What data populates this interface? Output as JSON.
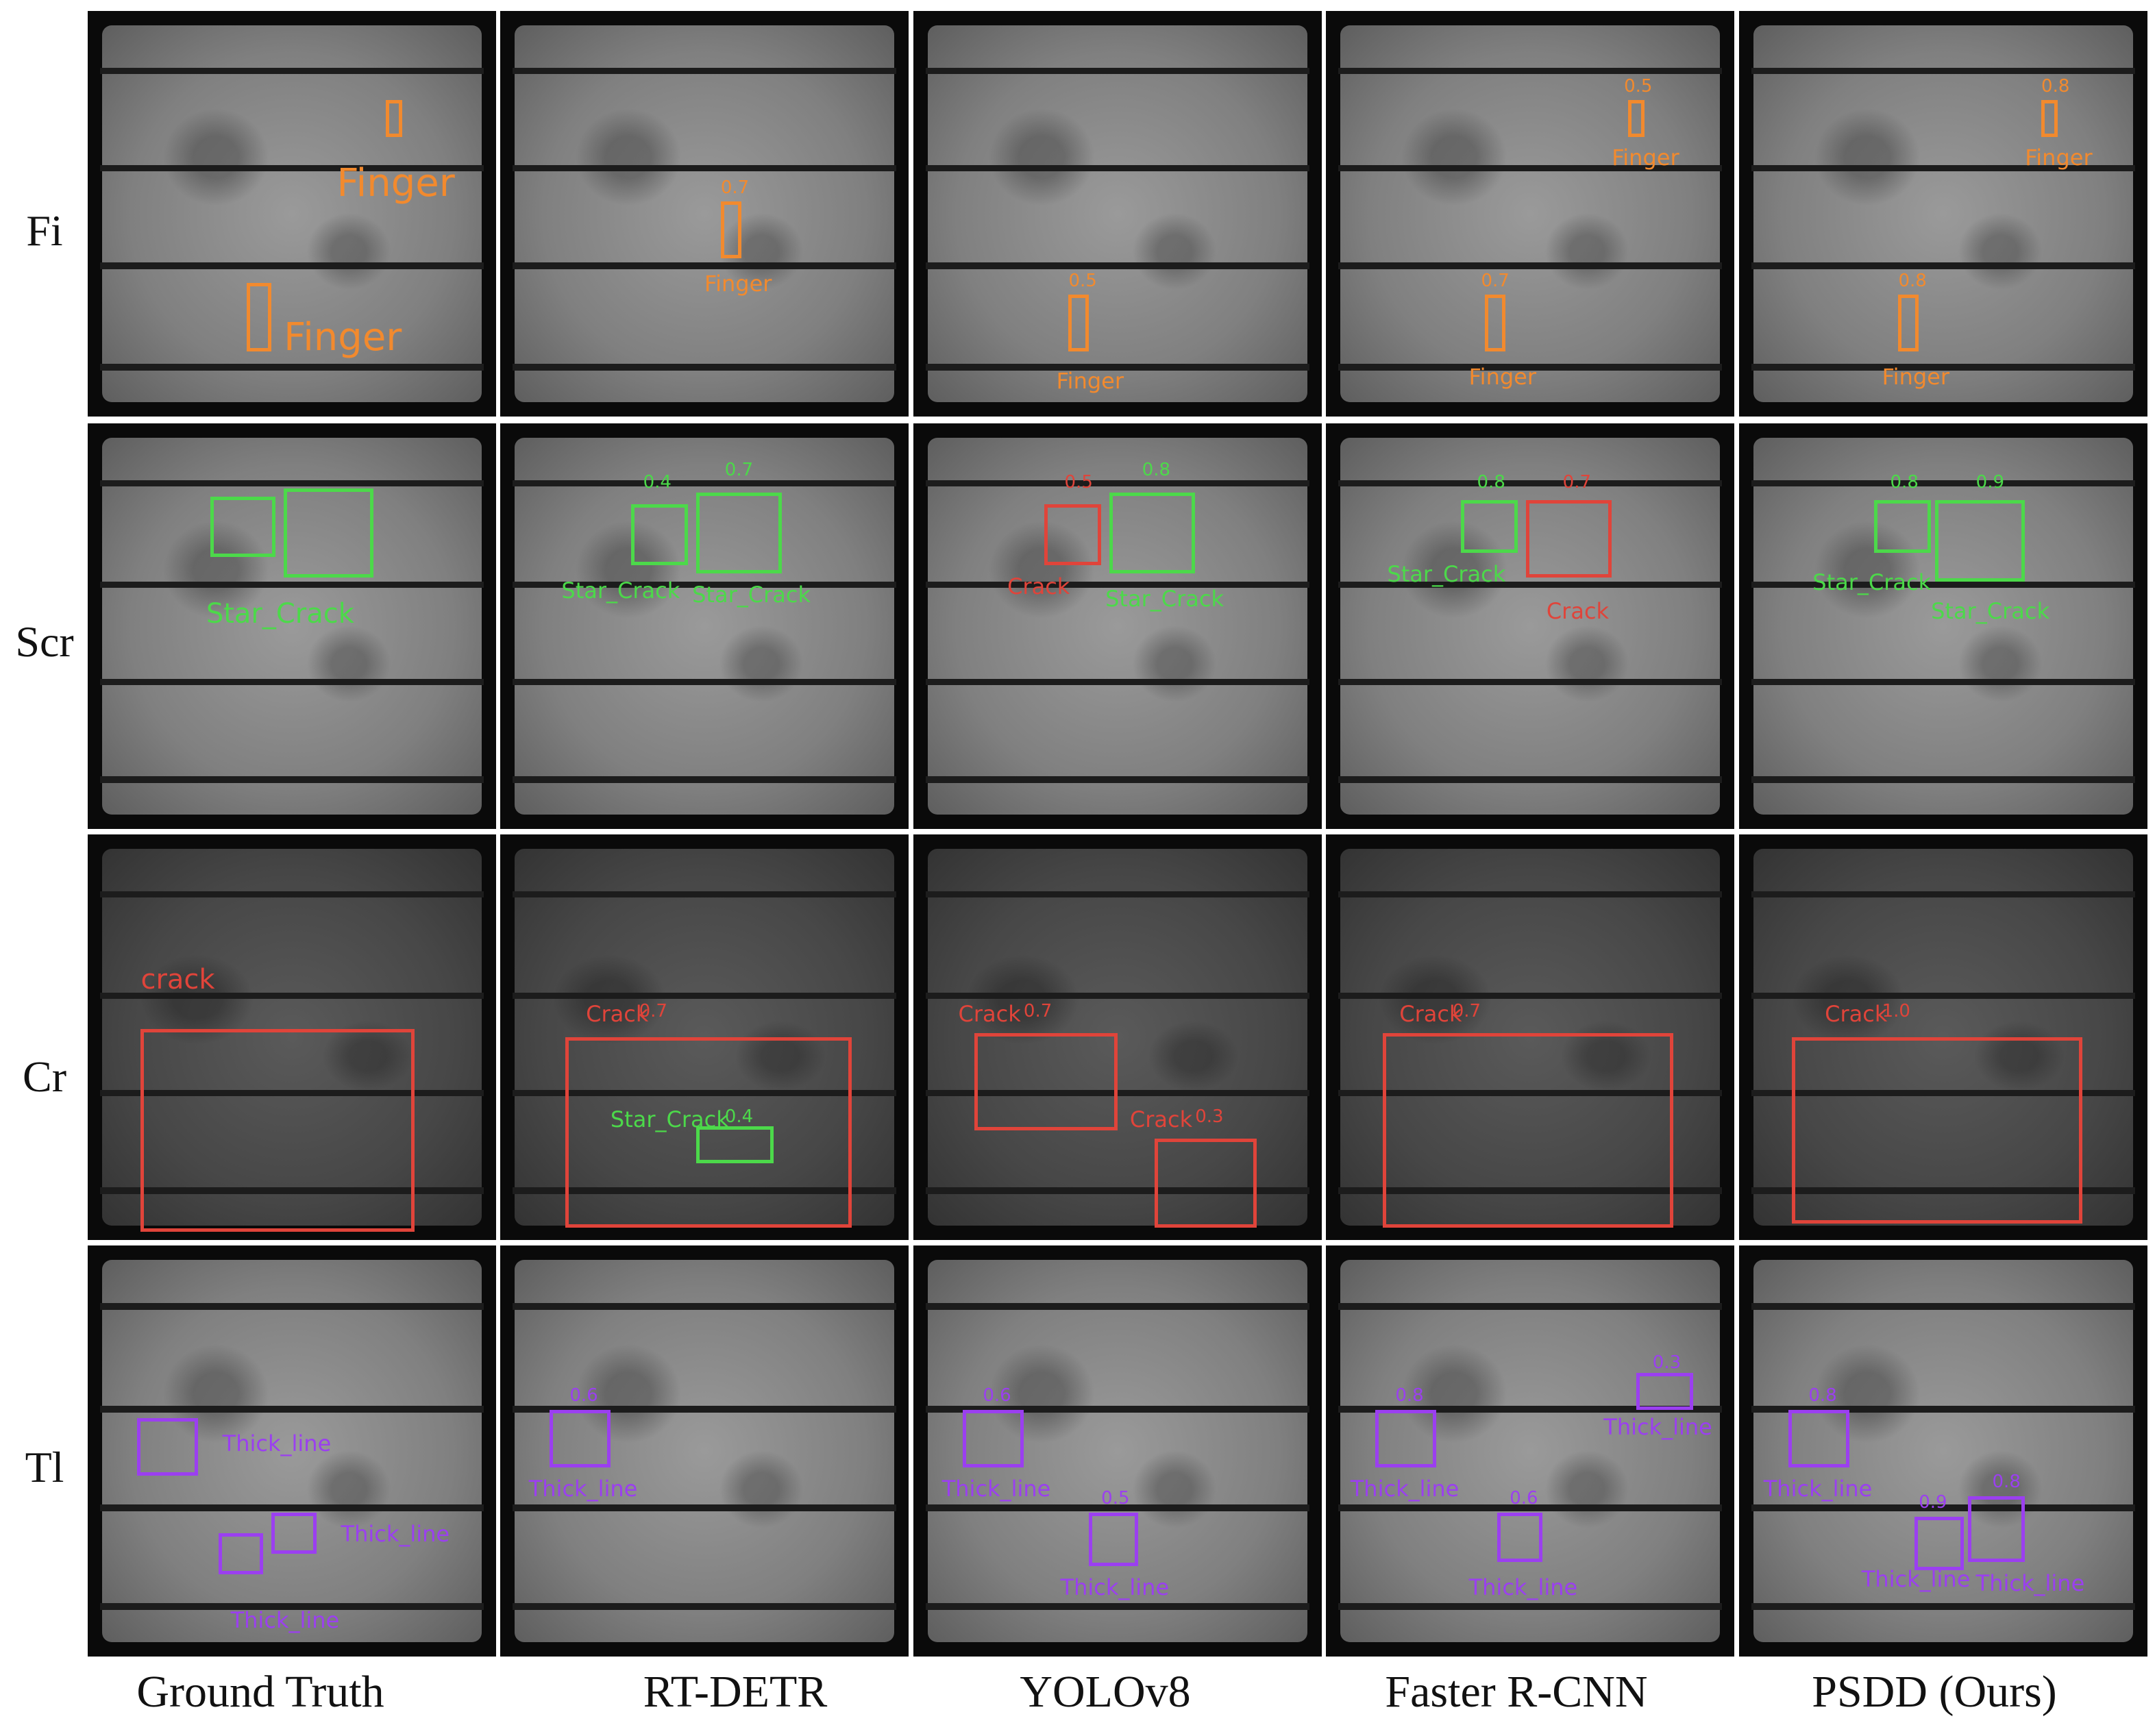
{
  "figure": {
    "row_labels": [
      "Fi",
      "Scr",
      "Cr",
      "Tl"
    ],
    "column_labels": [
      "Ground Truth",
      "RT-DETR",
      "YOLOv8",
      "Faster R-CNN",
      "PSDD (Ours)"
    ],
    "colors": {
      "finger": "#f28a2e",
      "star_crack": "#4cd94a",
      "crack": "#e0443a",
      "thick_line": "#9b3ff0"
    },
    "detections": {
      "Fi": {
        "Ground Truth": [
          {
            "class": "Finger",
            "label": "Finger",
            "score": ""
          },
          {
            "class": "Finger",
            "label": "Finger",
            "score": ""
          }
        ],
        "RT-DETR": [
          {
            "class": "Finger",
            "label": "Finger",
            "score": "0.7"
          }
        ],
        "YOLOv8": [
          {
            "class": "Finger",
            "label": "Finger",
            "score": "0.5"
          }
        ],
        "Faster R-CNN": [
          {
            "class": "Finger",
            "label": "Finger",
            "score": "0.5"
          },
          {
            "class": "Finger",
            "label": "Finger",
            "score": "0.7"
          }
        ],
        "PSDD (Ours)": [
          {
            "class": "Finger",
            "label": "Finger",
            "score": "0.8"
          },
          {
            "class": "Finger",
            "label": "Finger",
            "score": "0.8"
          }
        ]
      },
      "Scr": {
        "Ground Truth": [
          {
            "class": "Star_Crack",
            "label": "Star_Crack",
            "score": ""
          },
          {
            "class": "Star_Crack",
            "label": "",
            "score": ""
          }
        ],
        "RT-DETR": [
          {
            "class": "Star_Crack",
            "label": "Star_Crack",
            "score": "0.4"
          },
          {
            "class": "Star_Crack",
            "label": "Star_Crack",
            "score": "0.7"
          }
        ],
        "YOLOv8": [
          {
            "class": "Crack",
            "label": "Crack",
            "score": "0.5"
          },
          {
            "class": "Star_Crack",
            "label": "Star_Crack",
            "score": "0.8"
          }
        ],
        "Faster R-CNN": [
          {
            "class": "Star_Crack",
            "label": "Star_Crack",
            "score": "0.8"
          },
          {
            "class": "Crack",
            "label": "Crack",
            "score": "0.7"
          }
        ],
        "PSDD (Ours)": [
          {
            "class": "Star_Crack",
            "label": "Star_Crack",
            "score": "0.8"
          },
          {
            "class": "Star_Crack",
            "label": "Star_Crack",
            "score": "0.9"
          }
        ]
      },
      "Cr": {
        "Ground Truth": [
          {
            "class": "Crack",
            "label": "crack",
            "score": ""
          }
        ],
        "RT-DETR": [
          {
            "class": "Crack",
            "label": "Crack",
            "score": "0.7"
          },
          {
            "class": "Star_Crack",
            "label": "Star_Crack",
            "score": "0.4"
          }
        ],
        "YOLOv8": [
          {
            "class": "Crack",
            "label": "Crack",
            "score": "0.7"
          },
          {
            "class": "Crack",
            "label": "Crack",
            "score": "0.3"
          }
        ],
        "Faster R-CNN": [
          {
            "class": "Crack",
            "label": "Crack",
            "score": "0.7"
          }
        ],
        "PSDD (Ours)": [
          {
            "class": "Crack",
            "label": "Crack",
            "score": "1.0"
          }
        ]
      },
      "Tl": {
        "Ground Truth": [
          {
            "class": "Thick_line",
            "label": "Thick_line",
            "score": ""
          },
          {
            "class": "Thick_line",
            "label": "Thick_line",
            "score": ""
          },
          {
            "class": "Thick_line",
            "label": "Thick_line",
            "score": ""
          }
        ],
        "RT-DETR": [
          {
            "class": "Thick_line",
            "label": "Thick_line",
            "score": "0.6"
          }
        ],
        "YOLOv8": [
          {
            "class": "Thick_line",
            "label": "Thick_line",
            "score": "0.6"
          },
          {
            "class": "Thick_line",
            "label": "Thick_line",
            "score": "0.5"
          }
        ],
        "Faster R-CNN": [
          {
            "class": "Thick_line",
            "label": "Thick_line",
            "score": "0.3"
          },
          {
            "class": "Thick_line",
            "label": "Thick_line",
            "score": "0.8"
          },
          {
            "class": "Thick_line",
            "label": "Thick_line",
            "score": "0.6"
          }
        ],
        "PSDD (Ours)": [
          {
            "class": "Thick_line",
            "label": "Thick_line",
            "score": "0.8"
          },
          {
            "class": "Thick_line",
            "label": "Thick_line",
            "score": "0.9"
          },
          {
            "class": "Thick_line",
            "label": "Thick_line",
            "score": "0.8"
          }
        ]
      }
    }
  }
}
